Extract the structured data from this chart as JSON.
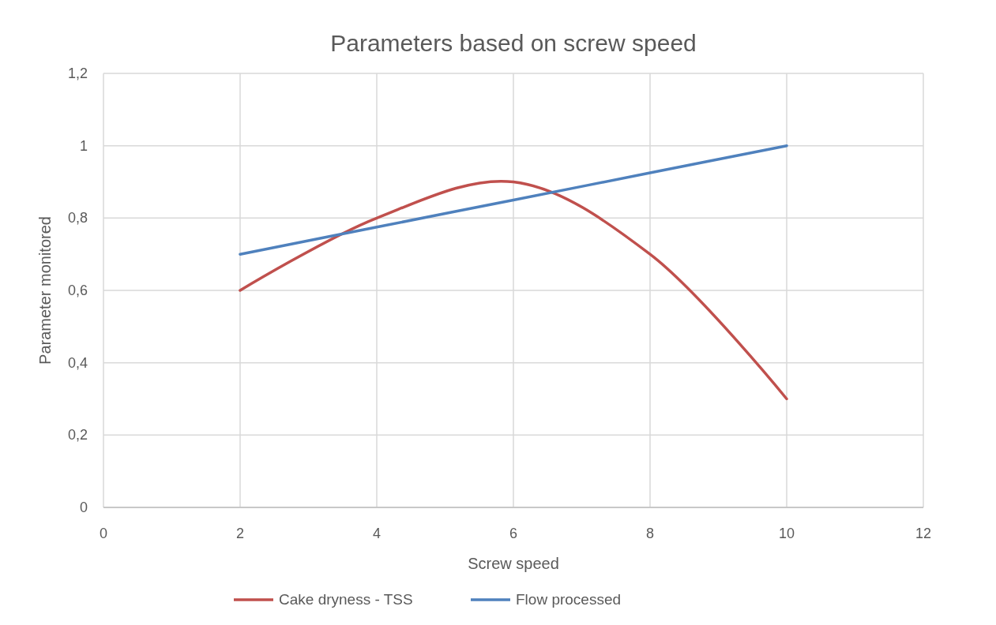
{
  "chart_data": {
    "type": "line",
    "title": "Parameters based on screw speed",
    "xlabel": "Screw speed",
    "ylabel": "Parameter monitored",
    "x": [
      2,
      4,
      6,
      8,
      10
    ],
    "series": [
      {
        "name": "Cake dryness - TSS",
        "color": "#c0504d",
        "values": [
          0.6,
          0.8,
          0.9,
          0.7,
          0.3
        ]
      },
      {
        "name": "Flow processed",
        "color": "#4f81bd",
        "values": [
          0.7,
          0.775,
          0.85,
          0.925,
          1
        ]
      }
    ],
    "xlim": [
      0,
      12
    ],
    "xticks": [
      0,
      2,
      4,
      6,
      8,
      10,
      12
    ],
    "ylim": [
      0,
      1.2
    ],
    "yticks": [
      0,
      {
        "value": 0.2,
        "label": "0,2"
      },
      {
        "value": 0.4,
        "label": "0,4"
      },
      {
        "value": 0.6,
        "label": "0,6"
      },
      {
        "value": 0.8,
        "label": "0,8"
      },
      1,
      {
        "value": 1.2,
        "label": "1,2"
      }
    ],
    "grid": true,
    "legend": "bottom",
    "marker": "none",
    "line_style": "solid"
  }
}
